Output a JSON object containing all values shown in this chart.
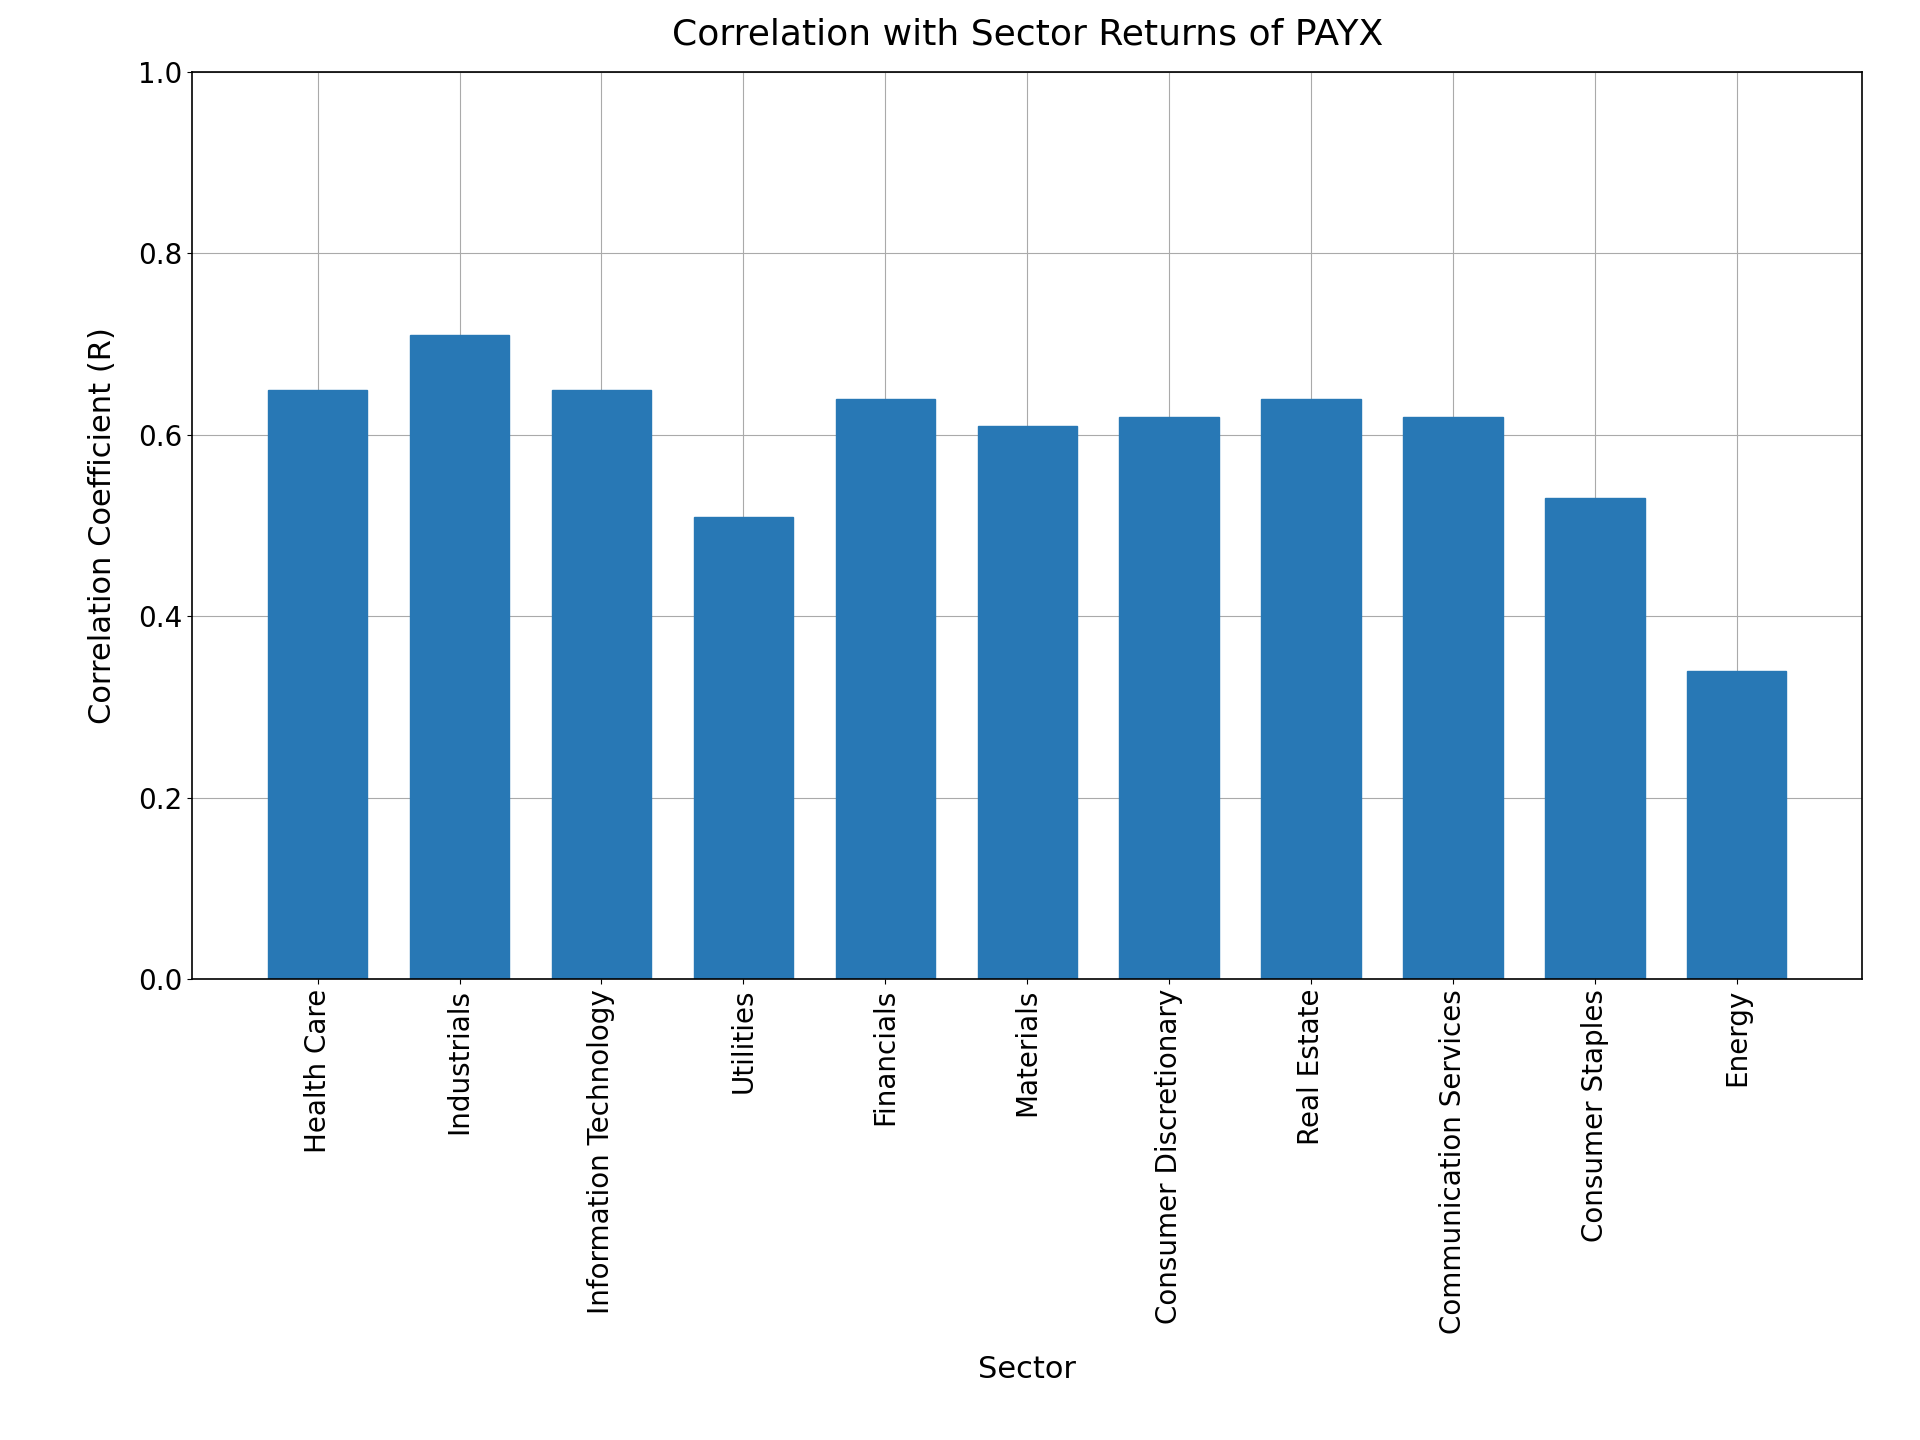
{
  "title": "Correlation with Sector Returns of PAYX",
  "xlabel": "Sector",
  "ylabel": "Correlation Coefficient (R)",
  "categories": [
    "Health Care",
    "Industrials",
    "Information Technology",
    "Utilities",
    "Financials",
    "Materials",
    "Consumer Discretionary",
    "Real Estate",
    "Communication Services",
    "Consumer Staples",
    "Energy"
  ],
  "values": [
    0.65,
    0.71,
    0.65,
    0.51,
    0.64,
    0.61,
    0.62,
    0.64,
    0.62,
    0.53,
    0.34
  ],
  "bar_color": "#2878b5",
  "ylim": [
    0.0,
    1.0
  ],
  "yticks": [
    0.0,
    0.2,
    0.4,
    0.6,
    0.8,
    1.0
  ],
  "title_fontsize": 26,
  "label_fontsize": 22,
  "tick_fontsize": 20,
  "background_color": "#ffffff",
  "grid_color": "#aaaaaa",
  "bar_width": 0.7,
  "xtick_rotation": 90,
  "xtick_ha": "center"
}
